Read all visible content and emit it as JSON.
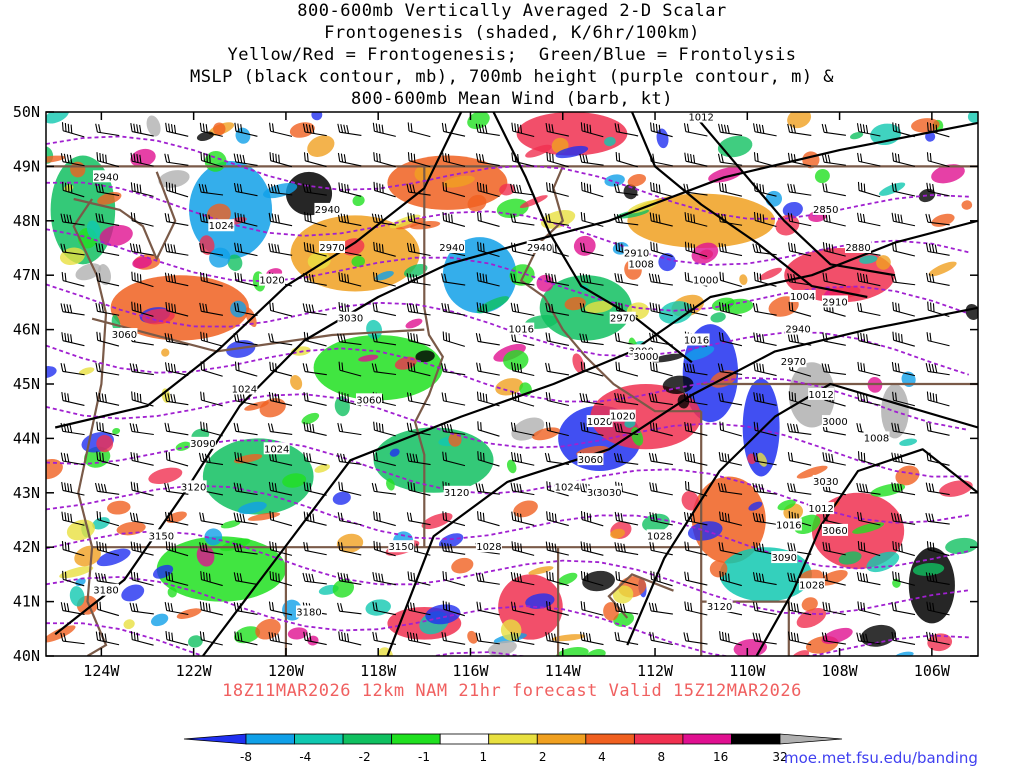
{
  "title_lines": [
    "800-600mb Vertically Averaged 2-D Scalar",
    "Frontogenesis (shaded, K/6hr/100km)",
    "Yellow/Red = Frontogenesis;  Green/Blue = Frontolysis",
    "MSLP (black contour, mb), 700mb height (purple contour, m) &",
    "800-600mb Mean Wind (barb, kt)"
  ],
  "valid_text": "18Z11MAR2026 12km NAM 21hr forecast Valid 15Z12MAR2026",
  "credit_text": "moe.met.fsu.edu/banding",
  "colors": {
    "mslp_contour": "#000000",
    "height_contour": "#a020d0",
    "state_borders": "#7a5a48"
  },
  "map": {
    "lat_labels": [
      "50N",
      "49N",
      "48N",
      "47N",
      "46N",
      "45N",
      "44N",
      "43N",
      "42N",
      "41N",
      "40N"
    ],
    "lon_labels": [
      "124W",
      "122W",
      "120W",
      "118W",
      "116W",
      "114W",
      "112W",
      "110W",
      "108W",
      "106W"
    ],
    "lat_range": [
      40,
      50
    ],
    "lon_range": [
      -125.2,
      -105
    ]
  },
  "contour_labels": {
    "mslp": [
      "1024",
      "1020",
      "1012",
      "1008",
      "1016",
      "1004",
      "1000",
      "1024",
      "1020",
      "1016",
      "1012",
      "1008",
      "1024",
      "1028",
      "1028",
      "1028",
      "1024",
      "1020",
      "1016",
      "1012"
    ],
    "height": [
      "2940",
      "2940",
      "2970",
      "3030",
      "3060",
      "3060",
      "3090",
      "3120",
      "3150",
      "3180",
      "3150",
      "3120",
      "3060",
      "3030",
      "3000",
      "2970",
      "2940",
      "2910",
      "2880",
      "2850",
      "2910",
      "2940",
      "2970",
      "3000",
      "3030",
      "3060",
      "3090",
      "3120",
      "3180",
      "2940",
      "3000",
      "3030"
    ]
  },
  "colorbar": {
    "ticks": [
      "-8",
      "-4",
      "-2",
      "-1",
      "1",
      "2",
      "4",
      "8",
      "16",
      "32"
    ],
    "colors": [
      "#2030f0",
      "#10a0e8",
      "#10c8b0",
      "#10c060",
      "#20e020",
      "#ffffff",
      "#e8e040",
      "#f0a020",
      "#f06020",
      "#f03050",
      "#e01090",
      "#000000",
      "#b0b0b0"
    ]
  }
}
